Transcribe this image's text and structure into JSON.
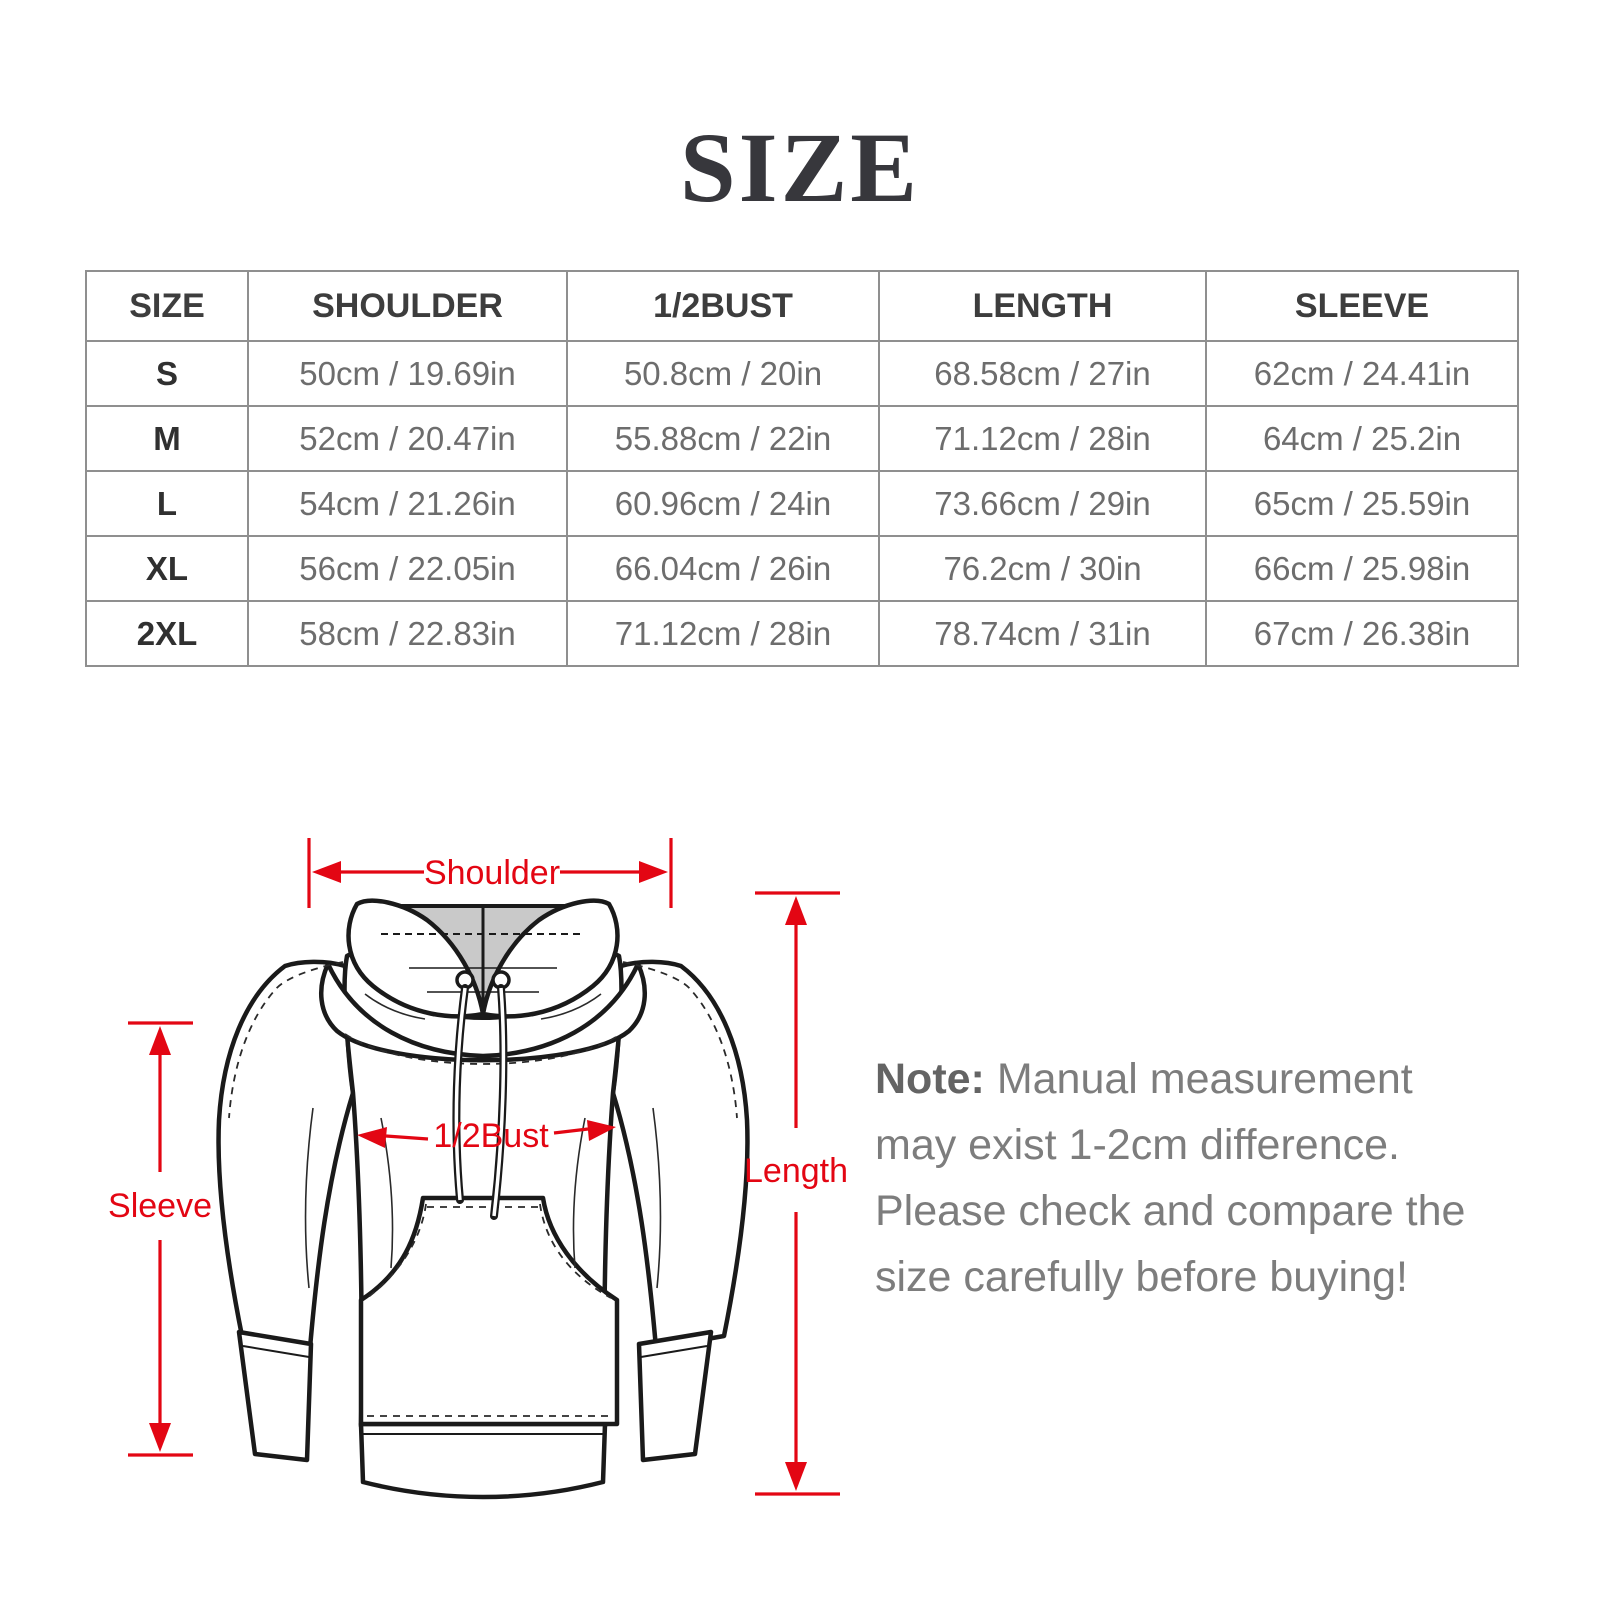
{
  "page": {
    "title": "SIZE"
  },
  "size_table": {
    "columns": [
      "SIZE",
      "SHOULDER",
      "1/2BUST",
      "LENGTH",
      "SLEEVE"
    ],
    "rows": [
      [
        "S",
        "50cm / 19.69in",
        "50.8cm / 20in",
        "68.58cm / 27in",
        "62cm / 24.41in"
      ],
      [
        "M",
        "52cm / 20.47in",
        "55.88cm / 22in",
        "71.12cm / 28in",
        "64cm / 25.2in"
      ],
      [
        "L",
        "54cm / 21.26in",
        "60.96cm / 24in",
        "73.66cm / 29in",
        "65cm / 25.59in"
      ],
      [
        "XL",
        "56cm / 22.05in",
        "66.04cm / 26in",
        "76.2cm / 30in",
        "66cm / 25.98in"
      ],
      [
        "2XL",
        "58cm / 22.83in",
        "71.12cm / 28in",
        "78.74cm / 31in",
        "67cm / 26.38in"
      ]
    ]
  },
  "diagram": {
    "labels": {
      "shoulder": "Shoulder",
      "half_bust": "1/2Bust",
      "length": "Length",
      "sleeve": "Sleeve"
    },
    "accent_color": "#e30613"
  },
  "note": {
    "label": "Note:",
    "text": " Manual measurement may exist 1-2cm difference. Please check and compare the size carefully before buying!"
  }
}
